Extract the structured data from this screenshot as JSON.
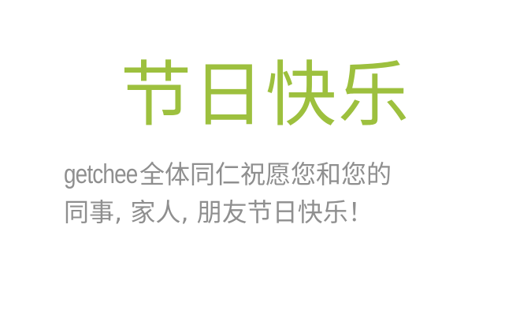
{
  "greeting": {
    "title": "节日快乐",
    "brand": "getchee",
    "line1_rest": "全体同仁祝愿您和您的",
    "line2": "同事, 家人, 朋友节日快乐！"
  },
  "colors": {
    "title": "#9dc03e",
    "body": "#8f8f8f",
    "background": "#ffffff"
  }
}
